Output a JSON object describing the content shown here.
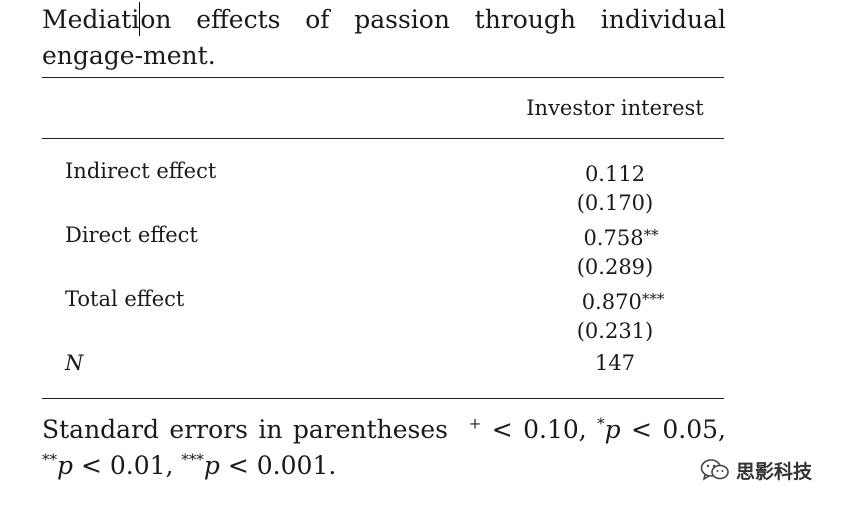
{
  "caption": {
    "part1": "Mediati",
    "part2": "on effects of passion through individual engage-ment."
  },
  "table": {
    "column_header": "Investor interest",
    "rows": [
      {
        "label": "Indirect effect",
        "estimate": "0.112",
        "stars": "",
        "se": "(0.170)"
      },
      {
        "label": "Direct effect",
        "estimate": "0.758",
        "stars": "**",
        "se": "(0.289)"
      },
      {
        "label": "Total effect",
        "estimate": "0.870",
        "stars": "***",
        "se": "(0.231)"
      }
    ],
    "n_label": "N",
    "n_value": "147"
  },
  "note": {
    "lead": "Standard errors in parentheses",
    "sym1": "+",
    "t1": " < 0.10, ",
    "sym2": "*",
    "p1": "p",
    "t2": " < 0.05, ",
    "sym3": "**",
    "p2": "p",
    "t3": " < 0.01, ",
    "sym4": "***",
    "p3": "p",
    "t4": " < 0.001."
  },
  "watermark": {
    "icon": "wechat-icon",
    "text": "思影科技"
  }
}
